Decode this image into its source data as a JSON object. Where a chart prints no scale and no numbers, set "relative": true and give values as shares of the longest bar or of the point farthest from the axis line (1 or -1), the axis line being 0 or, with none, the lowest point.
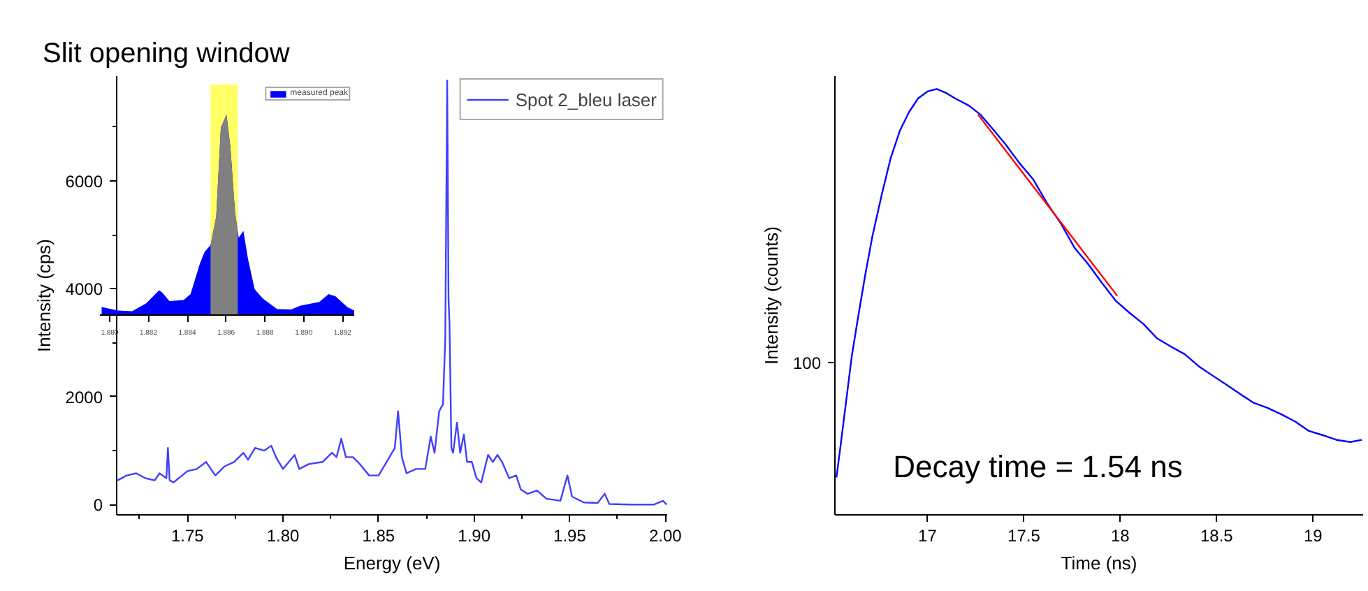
{
  "chart_data": [
    {
      "type": "line",
      "title": "Slit opening window",
      "xlabel": "Energy (eV)",
      "ylabel": "Intensity (cps)",
      "xlim": [
        1.713,
        2.001
      ],
      "ylim": [
        -190,
        7940
      ],
      "xticks": [
        {
          "value": 1.725,
          "label": null
        },
        1.75,
        {
          "value": 1.775,
          "label": null
        },
        {
          "value": 1.8,
          "label": "1.80"
        },
        {
          "value": 1.825,
          "label": null
        },
        1.85,
        {
          "value": 1.875,
          "label": null
        },
        {
          "value": 1.9,
          "label": "1.90"
        },
        {
          "value": 1.925,
          "label": null
        },
        1.95,
        {
          "value": 1.975,
          "label": null
        },
        {
          "value": 2.0,
          "label": "2.00"
        }
      ],
      "yticks": [
        0,
        {
          "value": 1000,
          "label": null
        },
        2000,
        {
          "value": 3000,
          "label": null
        },
        4000,
        {
          "value": 5000,
          "label": null
        },
        6000,
        {
          "value": 7000,
          "label": null
        }
      ],
      "legend": "top right",
      "line_style": "solid",
      "x": [
        1.7134,
        1.7183,
        1.7232,
        1.728,
        1.7329,
        1.7354,
        1.739,
        1.7398,
        1.7407,
        1.7427,
        1.75,
        1.7549,
        1.7598,
        1.7646,
        1.7695,
        1.7744,
        1.7793,
        1.7817,
        1.7854,
        1.7902,
        1.7939,
        1.7963,
        1.8,
        1.8061,
        1.8085,
        1.8134,
        1.8207,
        1.8256,
        1.828,
        1.8305,
        1.8329,
        1.8366,
        1.8402,
        1.8451,
        1.85,
        1.8549,
        1.8585,
        1.8602,
        1.8622,
        1.8646,
        1.8695,
        1.8744,
        1.8773,
        1.8793,
        1.8817,
        1.8837,
        1.8849,
        1.8859,
        1.8866,
        1.8871,
        1.8881,
        1.889,
        1.891,
        1.8927,
        1.8946,
        1.8963,
        1.8988,
        1.9012,
        1.9037,
        1.9073,
        1.9098,
        1.9122,
        1.9146,
        1.9183,
        1.922,
        1.9244,
        1.928,
        1.9329,
        1.9378,
        1.9451,
        1.9488,
        1.9512,
        1.9573,
        1.9646,
        1.9683,
        1.9707,
        1.9817,
        1.9939,
        1.9988,
        2.0007
      ],
      "series": [
        {
          "name": "Spot 2_bleu laser",
          "color": "#4040ff",
          "values": [
            450,
            540,
            580,
            490,
            450,
            580,
            490,
            1050,
            450,
            410,
            620,
            660,
            790,
            540,
            710,
            790,
            960,
            830,
            1050,
            1000,
            1090,
            880,
            660,
            920,
            660,
            750,
            790,
            960,
            880,
            1220,
            880,
            880,
            750,
            540,
            540,
            830,
            1050,
            1730,
            880,
            580,
            660,
            660,
            1260,
            960,
            1730,
            1860,
            3090,
            7860,
            3810,
            3350,
            1050,
            960,
            1520,
            960,
            1300,
            790,
            790,
            490,
            410,
            920,
            790,
            920,
            790,
            490,
            540,
            280,
            200,
            260,
            110,
            70,
            540,
            150,
            40,
            30,
            200,
            10,
            0,
            0,
            70,
            0
          ]
        }
      ]
    },
    {
      "type": "area",
      "relative": true,
      "xlim": [
        1.8795,
        1.8926
      ],
      "xticks": [
        {
          "value": 1.88,
          "label": "1.880"
        },
        {
          "value": 1.882,
          "label": "1.882"
        },
        {
          "value": 1.884,
          "label": "1.884"
        },
        {
          "value": 1.886,
          "label": "1.886"
        },
        {
          "value": 1.888,
          "label": "1.888"
        },
        {
          "value": 1.89,
          "label": "1.890"
        },
        {
          "value": 1.892,
          "label": "1.892"
        }
      ],
      "legend": "top right",
      "bands": [
        {
          "axis": "x",
          "from": 1.8852,
          "to": 1.8866,
          "color": "#ffff66"
        }
      ],
      "series": [
        {
          "name": "measured peak",
          "color": "#0000ff",
          "x": [
            1.87959,
            1.88043,
            1.88116,
            1.88188,
            1.88255,
            1.88272,
            1.88308,
            1.88381,
            1.88417,
            1.88465,
            1.88489,
            1.8852,
            1.88549,
            1.88573,
            1.88602,
            1.88622,
            1.88646,
            1.88665,
            1.88689,
            1.88713,
            1.88747,
            1.8879,
            1.88863,
            1.88935,
            1.88983,
            1.8908,
            1.89128,
            1.89164,
            1.89224,
            1.8926
          ],
          "values": [
            0.04,
            0.023,
            0.019,
            0.058,
            0.124,
            0.112,
            0.07,
            0.075,
            0.105,
            0.257,
            0.315,
            0.35,
            0.49,
            0.935,
            1.0,
            0.84,
            0.514,
            0.386,
            0.42,
            0.28,
            0.129,
            0.082,
            0.03,
            0.028,
            0.047,
            0.065,
            0.105,
            0.093,
            0.04,
            0.023
          ]
        },
        {
          "color": "#808080",
          "x": [
            1.8852,
            1.88549,
            1.88573,
            1.88602,
            1.88622,
            1.88646,
            1.8866
          ],
          "values": [
            0.35,
            0.49,
            0.935,
            1.0,
            0.84,
            0.514,
            0.42
          ]
        }
      ]
    },
    {
      "type": "line",
      "relative": true,
      "xlabel": "Time (ns)",
      "ylabel": "Intensity (counts)",
      "xlim": [
        16.52,
        19.26
      ],
      "xticks": [
        17,
        17.5,
        18,
        18.5,
        19
      ],
      "annotations": [
        "100",
        "Decay time = 1.54 ns"
      ],
      "line_style": "solid",
      "series": [
        {
          "color": "#0000ff",
          "x": [
            16.528,
            16.547,
            16.583,
            16.607,
            16.642,
            16.678,
            16.714,
            16.762,
            16.809,
            16.857,
            16.905,
            16.952,
            17.0,
            17.048,
            17.095,
            17.143,
            17.215,
            17.274,
            17.346,
            17.405,
            17.477,
            17.548,
            17.62,
            17.691,
            17.763,
            17.835,
            17.906,
            17.978,
            18.049,
            18.121,
            18.192,
            18.264,
            18.335,
            18.407,
            18.479,
            18.55,
            18.621,
            18.693,
            18.764,
            18.836,
            18.908,
            18.979,
            19.051,
            19.122,
            19.194,
            19.253
          ],
          "values": [
            0.088,
            0.154,
            0.284,
            0.371,
            0.469,
            0.565,
            0.653,
            0.75,
            0.837,
            0.902,
            0.946,
            0.978,
            0.994,
            1.0,
            0.991,
            0.978,
            0.961,
            0.94,
            0.902,
            0.87,
            0.826,
            0.788,
            0.732,
            0.685,
            0.627,
            0.588,
            0.544,
            0.502,
            0.474,
            0.448,
            0.414,
            0.395,
            0.377,
            0.349,
            0.327,
            0.306,
            0.284,
            0.263,
            0.251,
            0.236,
            0.219,
            0.197,
            0.187,
            0.176,
            0.171,
            0.176
          ]
        },
        {
          "color": "#ff0000",
          "x": [
            17.262,
            17.985
          ],
          "values": [
            0.94,
            0.514
          ]
        }
      ]
    }
  ]
}
